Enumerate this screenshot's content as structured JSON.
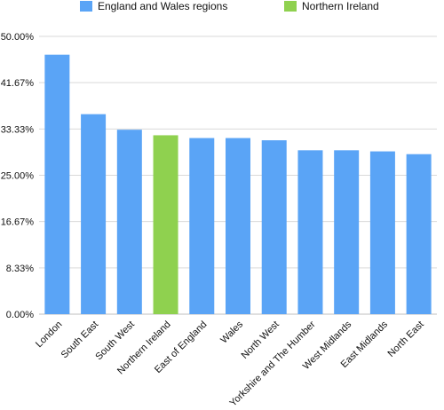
{
  "chart_data": {
    "type": "bar",
    "categories": [
      "London",
      "South East",
      "South West",
      "Northern Ireland",
      "East of England",
      "Wales",
      "North West",
      "Yorkshire and The Humber",
      "West Midlands",
      "East Midlands",
      "North East"
    ],
    "values": [
      46.7,
      36.0,
      33.2,
      32.2,
      31.7,
      31.7,
      31.3,
      29.5,
      29.5,
      29.3,
      28.8
    ],
    "bar_groups": [
      "England and Wales regions",
      "England and Wales regions",
      "England and Wales regions",
      "Northern Ireland",
      "England and Wales regions",
      "England and Wales regions",
      "England and Wales regions",
      "England and Wales regions",
      "England and Wales regions",
      "England and Wales regions",
      "England and Wales regions"
    ],
    "legend": [
      {
        "name": "England and Wales regions",
        "color": "#5aa4f6"
      },
      {
        "name": "Northern Ireland",
        "color": "#8fd14f"
      }
    ],
    "y_ticks": [
      "0.00%",
      "8.33%",
      "16.67%",
      "25.00%",
      "33.33%",
      "41.67%",
      "50.00%"
    ],
    "ylim": [
      0,
      50
    ],
    "legend_position": "top",
    "grid": true,
    "title": "",
    "xlabel": "",
    "ylabel": ""
  }
}
